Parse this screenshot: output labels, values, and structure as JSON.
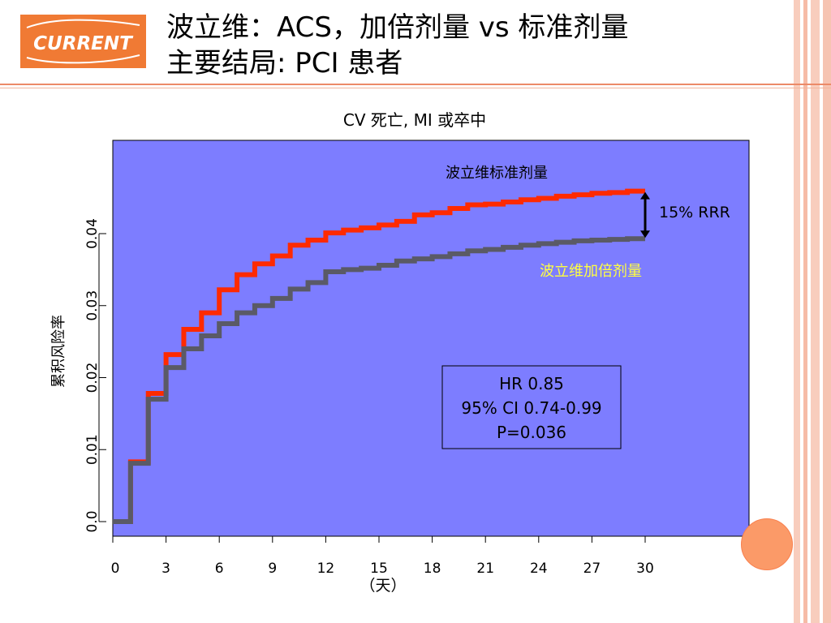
{
  "slide": {
    "title_line1": "波立维：ACS，加倍剂量 vs 标准剂量",
    "title_line2": "主要结局: PCI 患者",
    "logo_text": "CURRENT",
    "colors": {
      "logo_bg": "#f07a34",
      "stripes": "#f8c8b8",
      "rule": "#ec8a68",
      "plot_bg": "#7d7dff",
      "standard_line": "#ff2a00",
      "double_line": "#5a5a66",
      "double_label": "#ffff40",
      "circle": "#fb9a68"
    },
    "decor": [
      "logo-badge",
      "orange-circle"
    ]
  },
  "chart_data": {
    "type": "line",
    "title": "CV 死亡, MI 或卒中",
    "xlabel": "（天）",
    "ylabel": "累积风险率",
    "xlim": [
      0,
      36
    ],
    "ylim": [
      -0.002,
      0.053
    ],
    "x_ticks": [
      0,
      3,
      6,
      9,
      12,
      15,
      18,
      21,
      24,
      27,
      30
    ],
    "x_tick_labels": [
      "0",
      "3",
      "6",
      "9",
      "12",
      "15",
      "18",
      "21",
      "24",
      "27",
      "30"
    ],
    "y_ticks": [
      0.0,
      0.01,
      0.02,
      0.03,
      0.04
    ],
    "y_tick_labels": [
      "0.0",
      "0.01",
      "0.02",
      "0.03",
      "0.04"
    ],
    "step": true,
    "series": [
      {
        "name": "波立维标准剂量",
        "color": "#ff2a00",
        "x": [
          0,
          1,
          2,
          3,
          4,
          5,
          6,
          7,
          8,
          9,
          10,
          11,
          12,
          13,
          14,
          15,
          16,
          17,
          18,
          19,
          20,
          21,
          22,
          23,
          24,
          25,
          26,
          27,
          28,
          29,
          30
        ],
        "y": [
          0,
          0.0083,
          0.0178,
          0.0232,
          0.0267,
          0.029,
          0.0322,
          0.0343,
          0.0358,
          0.0369,
          0.0384,
          0.0391,
          0.0401,
          0.0405,
          0.0408,
          0.0412,
          0.0417,
          0.0426,
          0.0429,
          0.0435,
          0.044,
          0.0441,
          0.0444,
          0.0447,
          0.0449,
          0.0452,
          0.0454,
          0.0456,
          0.0457,
          0.0459,
          0.0459
        ]
      },
      {
        "name": "波立维加倍剂量",
        "color": "#5a5a66",
        "x": [
          0,
          1,
          2,
          3,
          4,
          5,
          6,
          7,
          8,
          9,
          10,
          11,
          12,
          13,
          14,
          15,
          16,
          17,
          18,
          19,
          20,
          21,
          22,
          23,
          24,
          25,
          26,
          27,
          28,
          29,
          30
        ],
        "y": [
          0,
          0.0081,
          0.017,
          0.0214,
          0.024,
          0.0258,
          0.0275,
          0.029,
          0.03,
          0.031,
          0.0323,
          0.0332,
          0.0347,
          0.035,
          0.0352,
          0.0356,
          0.0362,
          0.0365,
          0.0368,
          0.0372,
          0.0376,
          0.0378,
          0.0381,
          0.0384,
          0.0386,
          0.0388,
          0.039,
          0.0391,
          0.0392,
          0.0393,
          0.0393
        ]
      }
    ],
    "annotations": {
      "rrr": "15% RRR",
      "stats": [
        "HR 0.85",
        "95% CI 0.74-0.99",
        "P=0.036"
      ]
    },
    "grid": false
  }
}
